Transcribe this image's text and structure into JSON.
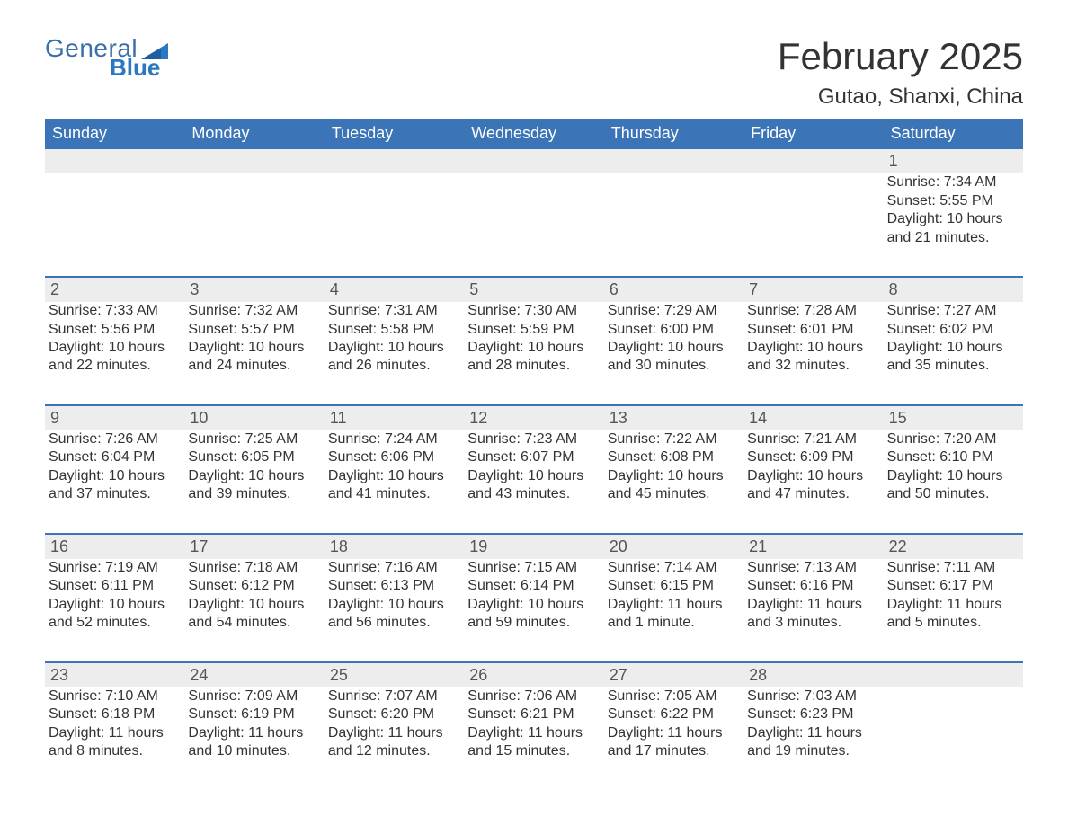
{
  "logo": {
    "word1": "General",
    "word2": "Blue"
  },
  "title": "February 2025",
  "location": "Gutao, Shanxi, China",
  "colors": {
    "header_bg": "#3b74b7",
    "header_text": "#ffffff",
    "daynum_bg": "#ededed",
    "text": "#333333",
    "rule": "#3b74b7",
    "logo_primary": "#3a6fa8",
    "logo_accent": "#2a78c2",
    "page_bg": "#ffffff"
  },
  "typography": {
    "title_fontsize": 42,
    "location_fontsize": 24,
    "dayheader_fontsize": 18,
    "daynum_fontsize": 18,
    "body_fontsize": 16
  },
  "day_headers": [
    "Sunday",
    "Monday",
    "Tuesday",
    "Wednesday",
    "Thursday",
    "Friday",
    "Saturday"
  ],
  "weeks": [
    [
      {},
      {},
      {},
      {},
      {},
      {},
      {
        "day": "1",
        "sunrise": "Sunrise: 7:34 AM",
        "sunset": "Sunset: 5:55 PM",
        "dl1": "Daylight: 10 hours",
        "dl2": "and 21 minutes."
      }
    ],
    [
      {
        "day": "2",
        "sunrise": "Sunrise: 7:33 AM",
        "sunset": "Sunset: 5:56 PM",
        "dl1": "Daylight: 10 hours",
        "dl2": "and 22 minutes."
      },
      {
        "day": "3",
        "sunrise": "Sunrise: 7:32 AM",
        "sunset": "Sunset: 5:57 PM",
        "dl1": "Daylight: 10 hours",
        "dl2": "and 24 minutes."
      },
      {
        "day": "4",
        "sunrise": "Sunrise: 7:31 AM",
        "sunset": "Sunset: 5:58 PM",
        "dl1": "Daylight: 10 hours",
        "dl2": "and 26 minutes."
      },
      {
        "day": "5",
        "sunrise": "Sunrise: 7:30 AM",
        "sunset": "Sunset: 5:59 PM",
        "dl1": "Daylight: 10 hours",
        "dl2": "and 28 minutes."
      },
      {
        "day": "6",
        "sunrise": "Sunrise: 7:29 AM",
        "sunset": "Sunset: 6:00 PM",
        "dl1": "Daylight: 10 hours",
        "dl2": "and 30 minutes."
      },
      {
        "day": "7",
        "sunrise": "Sunrise: 7:28 AM",
        "sunset": "Sunset: 6:01 PM",
        "dl1": "Daylight: 10 hours",
        "dl2": "and 32 minutes."
      },
      {
        "day": "8",
        "sunrise": "Sunrise: 7:27 AM",
        "sunset": "Sunset: 6:02 PM",
        "dl1": "Daylight: 10 hours",
        "dl2": "and 35 minutes."
      }
    ],
    [
      {
        "day": "9",
        "sunrise": "Sunrise: 7:26 AM",
        "sunset": "Sunset: 6:04 PM",
        "dl1": "Daylight: 10 hours",
        "dl2": "and 37 minutes."
      },
      {
        "day": "10",
        "sunrise": "Sunrise: 7:25 AM",
        "sunset": "Sunset: 6:05 PM",
        "dl1": "Daylight: 10 hours",
        "dl2": "and 39 minutes."
      },
      {
        "day": "11",
        "sunrise": "Sunrise: 7:24 AM",
        "sunset": "Sunset: 6:06 PM",
        "dl1": "Daylight: 10 hours",
        "dl2": "and 41 minutes."
      },
      {
        "day": "12",
        "sunrise": "Sunrise: 7:23 AM",
        "sunset": "Sunset: 6:07 PM",
        "dl1": "Daylight: 10 hours",
        "dl2": "and 43 minutes."
      },
      {
        "day": "13",
        "sunrise": "Sunrise: 7:22 AM",
        "sunset": "Sunset: 6:08 PM",
        "dl1": "Daylight: 10 hours",
        "dl2": "and 45 minutes."
      },
      {
        "day": "14",
        "sunrise": "Sunrise: 7:21 AM",
        "sunset": "Sunset: 6:09 PM",
        "dl1": "Daylight: 10 hours",
        "dl2": "and 47 minutes."
      },
      {
        "day": "15",
        "sunrise": "Sunrise: 7:20 AM",
        "sunset": "Sunset: 6:10 PM",
        "dl1": "Daylight: 10 hours",
        "dl2": "and 50 minutes."
      }
    ],
    [
      {
        "day": "16",
        "sunrise": "Sunrise: 7:19 AM",
        "sunset": "Sunset: 6:11 PM",
        "dl1": "Daylight: 10 hours",
        "dl2": "and 52 minutes."
      },
      {
        "day": "17",
        "sunrise": "Sunrise: 7:18 AM",
        "sunset": "Sunset: 6:12 PM",
        "dl1": "Daylight: 10 hours",
        "dl2": "and 54 minutes."
      },
      {
        "day": "18",
        "sunrise": "Sunrise: 7:16 AM",
        "sunset": "Sunset: 6:13 PM",
        "dl1": "Daylight: 10 hours",
        "dl2": "and 56 minutes."
      },
      {
        "day": "19",
        "sunrise": "Sunrise: 7:15 AM",
        "sunset": "Sunset: 6:14 PM",
        "dl1": "Daylight: 10 hours",
        "dl2": "and 59 minutes."
      },
      {
        "day": "20",
        "sunrise": "Sunrise: 7:14 AM",
        "sunset": "Sunset: 6:15 PM",
        "dl1": "Daylight: 11 hours",
        "dl2": "and 1 minute."
      },
      {
        "day": "21",
        "sunrise": "Sunrise: 7:13 AM",
        "sunset": "Sunset: 6:16 PM",
        "dl1": "Daylight: 11 hours",
        "dl2": "and 3 minutes."
      },
      {
        "day": "22",
        "sunrise": "Sunrise: 7:11 AM",
        "sunset": "Sunset: 6:17 PM",
        "dl1": "Daylight: 11 hours",
        "dl2": "and 5 minutes."
      }
    ],
    [
      {
        "day": "23",
        "sunrise": "Sunrise: 7:10 AM",
        "sunset": "Sunset: 6:18 PM",
        "dl1": "Daylight: 11 hours",
        "dl2": "and 8 minutes."
      },
      {
        "day": "24",
        "sunrise": "Sunrise: 7:09 AM",
        "sunset": "Sunset: 6:19 PM",
        "dl1": "Daylight: 11 hours",
        "dl2": "and 10 minutes."
      },
      {
        "day": "25",
        "sunrise": "Sunrise: 7:07 AM",
        "sunset": "Sunset: 6:20 PM",
        "dl1": "Daylight: 11 hours",
        "dl2": "and 12 minutes."
      },
      {
        "day": "26",
        "sunrise": "Sunrise: 7:06 AM",
        "sunset": "Sunset: 6:21 PM",
        "dl1": "Daylight: 11 hours",
        "dl2": "and 15 minutes."
      },
      {
        "day": "27",
        "sunrise": "Sunrise: 7:05 AM",
        "sunset": "Sunset: 6:22 PM",
        "dl1": "Daylight: 11 hours",
        "dl2": "and 17 minutes."
      },
      {
        "day": "28",
        "sunrise": "Sunrise: 7:03 AM",
        "sunset": "Sunset: 6:23 PM",
        "dl1": "Daylight: 11 hours",
        "dl2": "and 19 minutes."
      },
      {}
    ]
  ]
}
